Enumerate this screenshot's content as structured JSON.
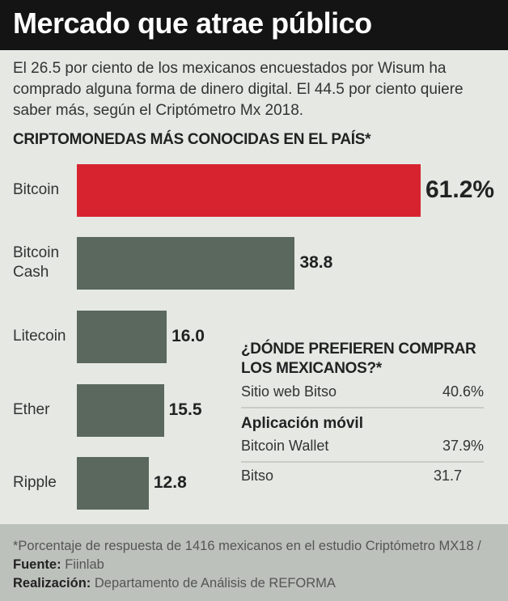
{
  "title": "Mercado que atrae público",
  "intro": "El 26.5 por ciento de los mexicanos encuestados por Wisum ha comprado alguna forma de dinero digital. El 44.5 por ciento quiere saber más, según el Criptómetro Mx 2018.",
  "chart_data": {
    "type": "bar",
    "orientation": "horizontal",
    "title": "CRIPTOMONEDAS MÁS CONOCIDAS EN EL PAÍS*",
    "categories": [
      "Bitcoin",
      "Bitcoin Cash",
      "Litecoin",
      "Ether",
      "Ripple"
    ],
    "values": [
      61.2,
      38.8,
      16.0,
      15.5,
      12.8
    ],
    "value_labels": [
      "61.2%",
      "38.8",
      "16.0",
      "15.5",
      "12.8"
    ],
    "colors": [
      "#d7232f",
      "#5b685d",
      "#5b685d",
      "#5b685d",
      "#5b685d"
    ],
    "unit": "%"
  },
  "side_table": {
    "title": "¿DÓNDE PREFIEREN COMPRAR LOS MEXICANOS?*",
    "rows": [
      {
        "label": "Sitio web Bitso",
        "value": "40.6%"
      }
    ],
    "group": "Aplicación móvil",
    "group_rows": [
      {
        "label": "Bitcoin Wallet",
        "value": "37.9%"
      },
      {
        "label": "Bitso",
        "value": "31.7"
      }
    ]
  },
  "footer": {
    "note": "*Porcentaje de respuesta de 1416 mexicanos en el estudio Criptómetro MX18 / ",
    "source_label": "Fuente:",
    "source": "Fiinlab",
    "credit_label": "Realización:",
    "credit": "Departamento de Análisis de REFORMA"
  }
}
